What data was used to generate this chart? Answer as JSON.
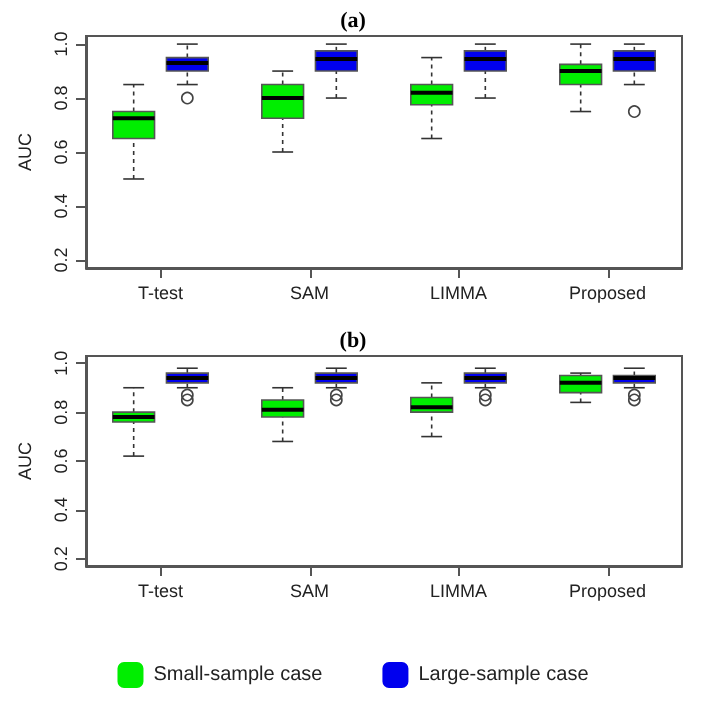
{
  "chart_data": [
    {
      "type": "box",
      "title": "(a)",
      "ylabel": "AUC",
      "categories": [
        "T-test",
        "SAM",
        "LIMMA",
        "Proposed"
      ],
      "ylim": [
        0.17,
        1.03
      ],
      "yticks": [
        0.2,
        0.4,
        0.6,
        0.8,
        {
          "value": 1,
          "label": "1.0"
        }
      ],
      "grid": false,
      "legend": false,
      "series": [
        {
          "color": "#00ee00",
          "boxes": [
            {
              "low": 0.5,
              "q1": 0.65,
              "median": 0.725,
              "q3": 0.75,
              "high": 0.85
            },
            {
              "low": 0.6,
              "q1": 0.725,
              "median": 0.8,
              "q3": 0.85,
              "high": 0.9
            },
            {
              "low": 0.65,
              "q1": 0.775,
              "median": 0.82,
              "q3": 0.85,
              "high": 0.95
            },
            {
              "low": 0.75,
              "q1": 0.85,
              "median": 0.9,
              "q3": 0.925,
              "high": 1.0
            }
          ]
        },
        {
          "color": "#0000ee",
          "boxes": [
            {
              "low": 0.85,
              "q1": 0.9,
              "median": 0.93,
              "q3": 0.95,
              "high": 1.0,
              "outliers": [
                0.8
              ]
            },
            {
              "low": 0.8,
              "q1": 0.9,
              "median": 0.945,
              "q3": 0.975,
              "high": 1.0
            },
            {
              "low": 0.8,
              "q1": 0.9,
              "median": 0.945,
              "q3": 0.975,
              "high": 1.0
            },
            {
              "low": 0.85,
              "q1": 0.9,
              "median": 0.945,
              "q3": 0.975,
              "high": 1.0,
              "outliers": [
                0.75
              ]
            }
          ]
        }
      ]
    },
    {
      "type": "box",
      "title": "(b)",
      "ylabel": "AUC",
      "categories": [
        "T-test",
        "SAM",
        "LIMMA",
        "Proposed"
      ],
      "ylim": [
        0.17,
        1.03
      ],
      "yticks": [
        0.2,
        0.4,
        0.6,
        0.8,
        {
          "value": 1,
          "label": "1.0"
        }
      ],
      "grid": false,
      "legend": "bottom",
      "series": [
        {
          "name": "Small-sample case",
          "color": "#00ee00",
          "boxes": [
            {
              "low": 0.62,
              "q1": 0.76,
              "median": 0.78,
              "q3": 0.8,
              "high": 0.9
            },
            {
              "low": 0.68,
              "q1": 0.78,
              "median": 0.81,
              "q3": 0.85,
              "high": 0.9
            },
            {
              "low": 0.7,
              "q1": 0.8,
              "median": 0.82,
              "q3": 0.86,
              "high": 0.92
            },
            {
              "low": 0.84,
              "q1": 0.88,
              "median": 0.92,
              "q3": 0.95,
              "high": 0.96
            }
          ]
        },
        {
          "name": "Large-sample case",
          "color": "#0000ee",
          "boxes": [
            {
              "low": 0.9,
              "q1": 0.92,
              "median": 0.94,
              "q3": 0.96,
              "high": 0.98,
              "outliers": [
                0.85,
                0.87
              ]
            },
            {
              "low": 0.9,
              "q1": 0.92,
              "median": 0.94,
              "q3": 0.96,
              "high": 0.98,
              "outliers": [
                0.85,
                0.87
              ]
            },
            {
              "low": 0.9,
              "q1": 0.92,
              "median": 0.94,
              "q3": 0.96,
              "high": 0.98,
              "outliers": [
                0.85,
                0.87
              ]
            },
            {
              "low": 0.9,
              "q1": 0.92,
              "median": 0.94,
              "q3": 0.95,
              "high": 0.98,
              "outliers": [
                0.85,
                0.87
              ]
            }
          ]
        }
      ]
    }
  ]
}
